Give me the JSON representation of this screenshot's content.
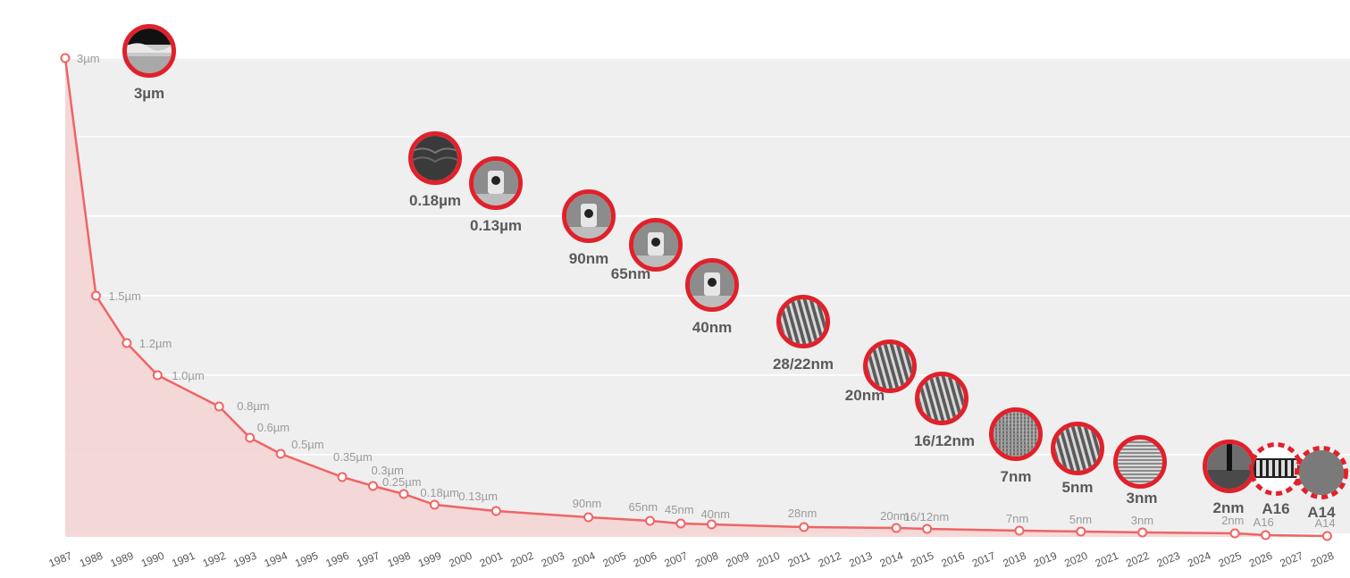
{
  "chart_data": {
    "type": "line",
    "title": "",
    "xlabel": "",
    "ylabel": "",
    "grid": true,
    "x_ticks": [
      "1987",
      "1988",
      "1989",
      "1990",
      "1991",
      "1992",
      "1993",
      "1994",
      "1995",
      "1996",
      "1997",
      "1998",
      "1999",
      "2000",
      "2001",
      "2002",
      "2003",
      "2004",
      "2005",
      "2006",
      "2007",
      "2008",
      "2009",
      "2010",
      "2011",
      "2012",
      "2013",
      "2014",
      "2015",
      "2016",
      "2017",
      "2018",
      "2019",
      "2020",
      "2021",
      "2022",
      "2023",
      "2024",
      "2025",
      "2026",
      "2027",
      "2028"
    ],
    "points": [
      {
        "year": 1987,
        "node": "3µm"
      },
      {
        "year": 1988,
        "node": "1.5µm"
      },
      {
        "year": 1989,
        "node": "1.2µm"
      },
      {
        "year": 1990,
        "node": "1.0µm"
      },
      {
        "year": 1992,
        "node": "0.8µm"
      },
      {
        "year": 1993,
        "node": "0.6µm"
      },
      {
        "year": 1994,
        "node": "0.5µm"
      },
      {
        "year": 1996,
        "node": "0.35µm"
      },
      {
        "year": 1997,
        "node": "0.3µm"
      },
      {
        "year": 1998,
        "node": "0.25µm"
      },
      {
        "year": 1999,
        "node": "0.18µm"
      },
      {
        "year": 2001,
        "node": "0.13µm"
      },
      {
        "year": 2004,
        "node": "90nm"
      },
      {
        "year": 2006,
        "node": "65nm"
      },
      {
        "year": 2007,
        "node": "45nm"
      },
      {
        "year": 2008,
        "node": "40nm"
      },
      {
        "year": 2011,
        "node": "28nm"
      },
      {
        "year": 2014,
        "node": "20nm"
      },
      {
        "year": 2015,
        "node": "16/12nm"
      },
      {
        "year": 2018,
        "node": "7nm"
      },
      {
        "year": 2020,
        "node": "5nm"
      },
      {
        "year": 2022,
        "node": "3nm"
      },
      {
        "year": 2025,
        "node": "2nm"
      },
      {
        "year": 2026,
        "node": "A16"
      },
      {
        "year": 2028,
        "node": "A14"
      }
    ],
    "highlights": [
      {
        "node": "3µm",
        "label": "3µm",
        "pattern": "layers",
        "future": false
      },
      {
        "node": "0.18µm",
        "label": "0.18µm",
        "pattern": "dark",
        "future": false
      },
      {
        "node": "0.13µm",
        "label": "0.13µm",
        "pattern": "gate",
        "future": false
      },
      {
        "node": "90nm",
        "label": "90nm",
        "pattern": "gate",
        "future": false
      },
      {
        "node": "65nm",
        "label": "65nm",
        "pattern": "gate",
        "future": false
      },
      {
        "node": "40nm",
        "label": "40nm",
        "pattern": "gate",
        "future": false
      },
      {
        "node": "28nm",
        "label": "28/22nm",
        "pattern": "fins",
        "future": false
      },
      {
        "node": "20nm",
        "label": "20nm",
        "pattern": "fins",
        "future": false
      },
      {
        "node": "16/12nm",
        "label": "16/12nm",
        "pattern": "fins",
        "future": false
      },
      {
        "node": "7nm",
        "label": "7nm",
        "pattern": "grid",
        "future": false
      },
      {
        "node": "5nm",
        "label": "5nm",
        "pattern": "fins",
        "future": false
      },
      {
        "node": "3nm",
        "label": "3nm",
        "pattern": "stripes",
        "future": false
      },
      {
        "node": "2nm",
        "label": "2nm",
        "pattern": "nanosheet",
        "future": false
      },
      {
        "node": "A16",
        "label": "A16",
        "pattern": "backside",
        "future": true
      },
      {
        "node": "A14",
        "label": "A14",
        "pattern": "gray",
        "future": true
      }
    ]
  },
  "colors": {
    "line": "#f06464",
    "area": "#f5d2d2",
    "ring": "#e0212b",
    "band": "#efefef",
    "label": "#9a9a9a",
    "big_label": "#5a5a5a"
  }
}
